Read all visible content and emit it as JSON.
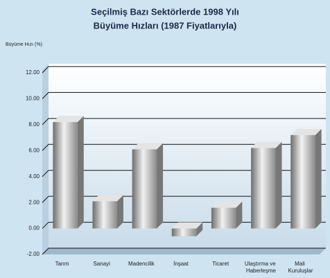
{
  "chart_data": {
    "type": "bar3d",
    "title": "Seçilmiş Bazı Sektörlerde 1998 Yılı",
    "subtitle": "Büyüme Hızları (1987 Fiyatlarıyla)",
    "y_label": "Büyüme Hızı (%)",
    "categories": [
      "Tarım",
      "Sanayi",
      "Madencilik",
      "İnşaat",
      "Ticaret",
      "Ulaştırma ve Haberleşme",
      "Mali Kuruluşlar"
    ],
    "values": [
      8.2,
      2.1,
      6.1,
      -0.6,
      1.6,
      6.2,
      7.2
    ],
    "color": "#b8b8b8",
    "ylim": [
      -2,
      12
    ],
    "yticks": [
      {
        "value": -2,
        "label": "-2.00"
      },
      {
        "value": 0,
        "label": "0.00"
      },
      {
        "value": 2,
        "label": "2.00"
      },
      {
        "value": 4,
        "label": "4.00"
      },
      {
        "value": 6,
        "label": "6.00"
      },
      {
        "value": 8,
        "label": "8.00"
      },
      {
        "value": 10,
        "label": "10.00"
      },
      {
        "value": 12,
        "label": "12.00"
      }
    ],
    "grid": true
  }
}
